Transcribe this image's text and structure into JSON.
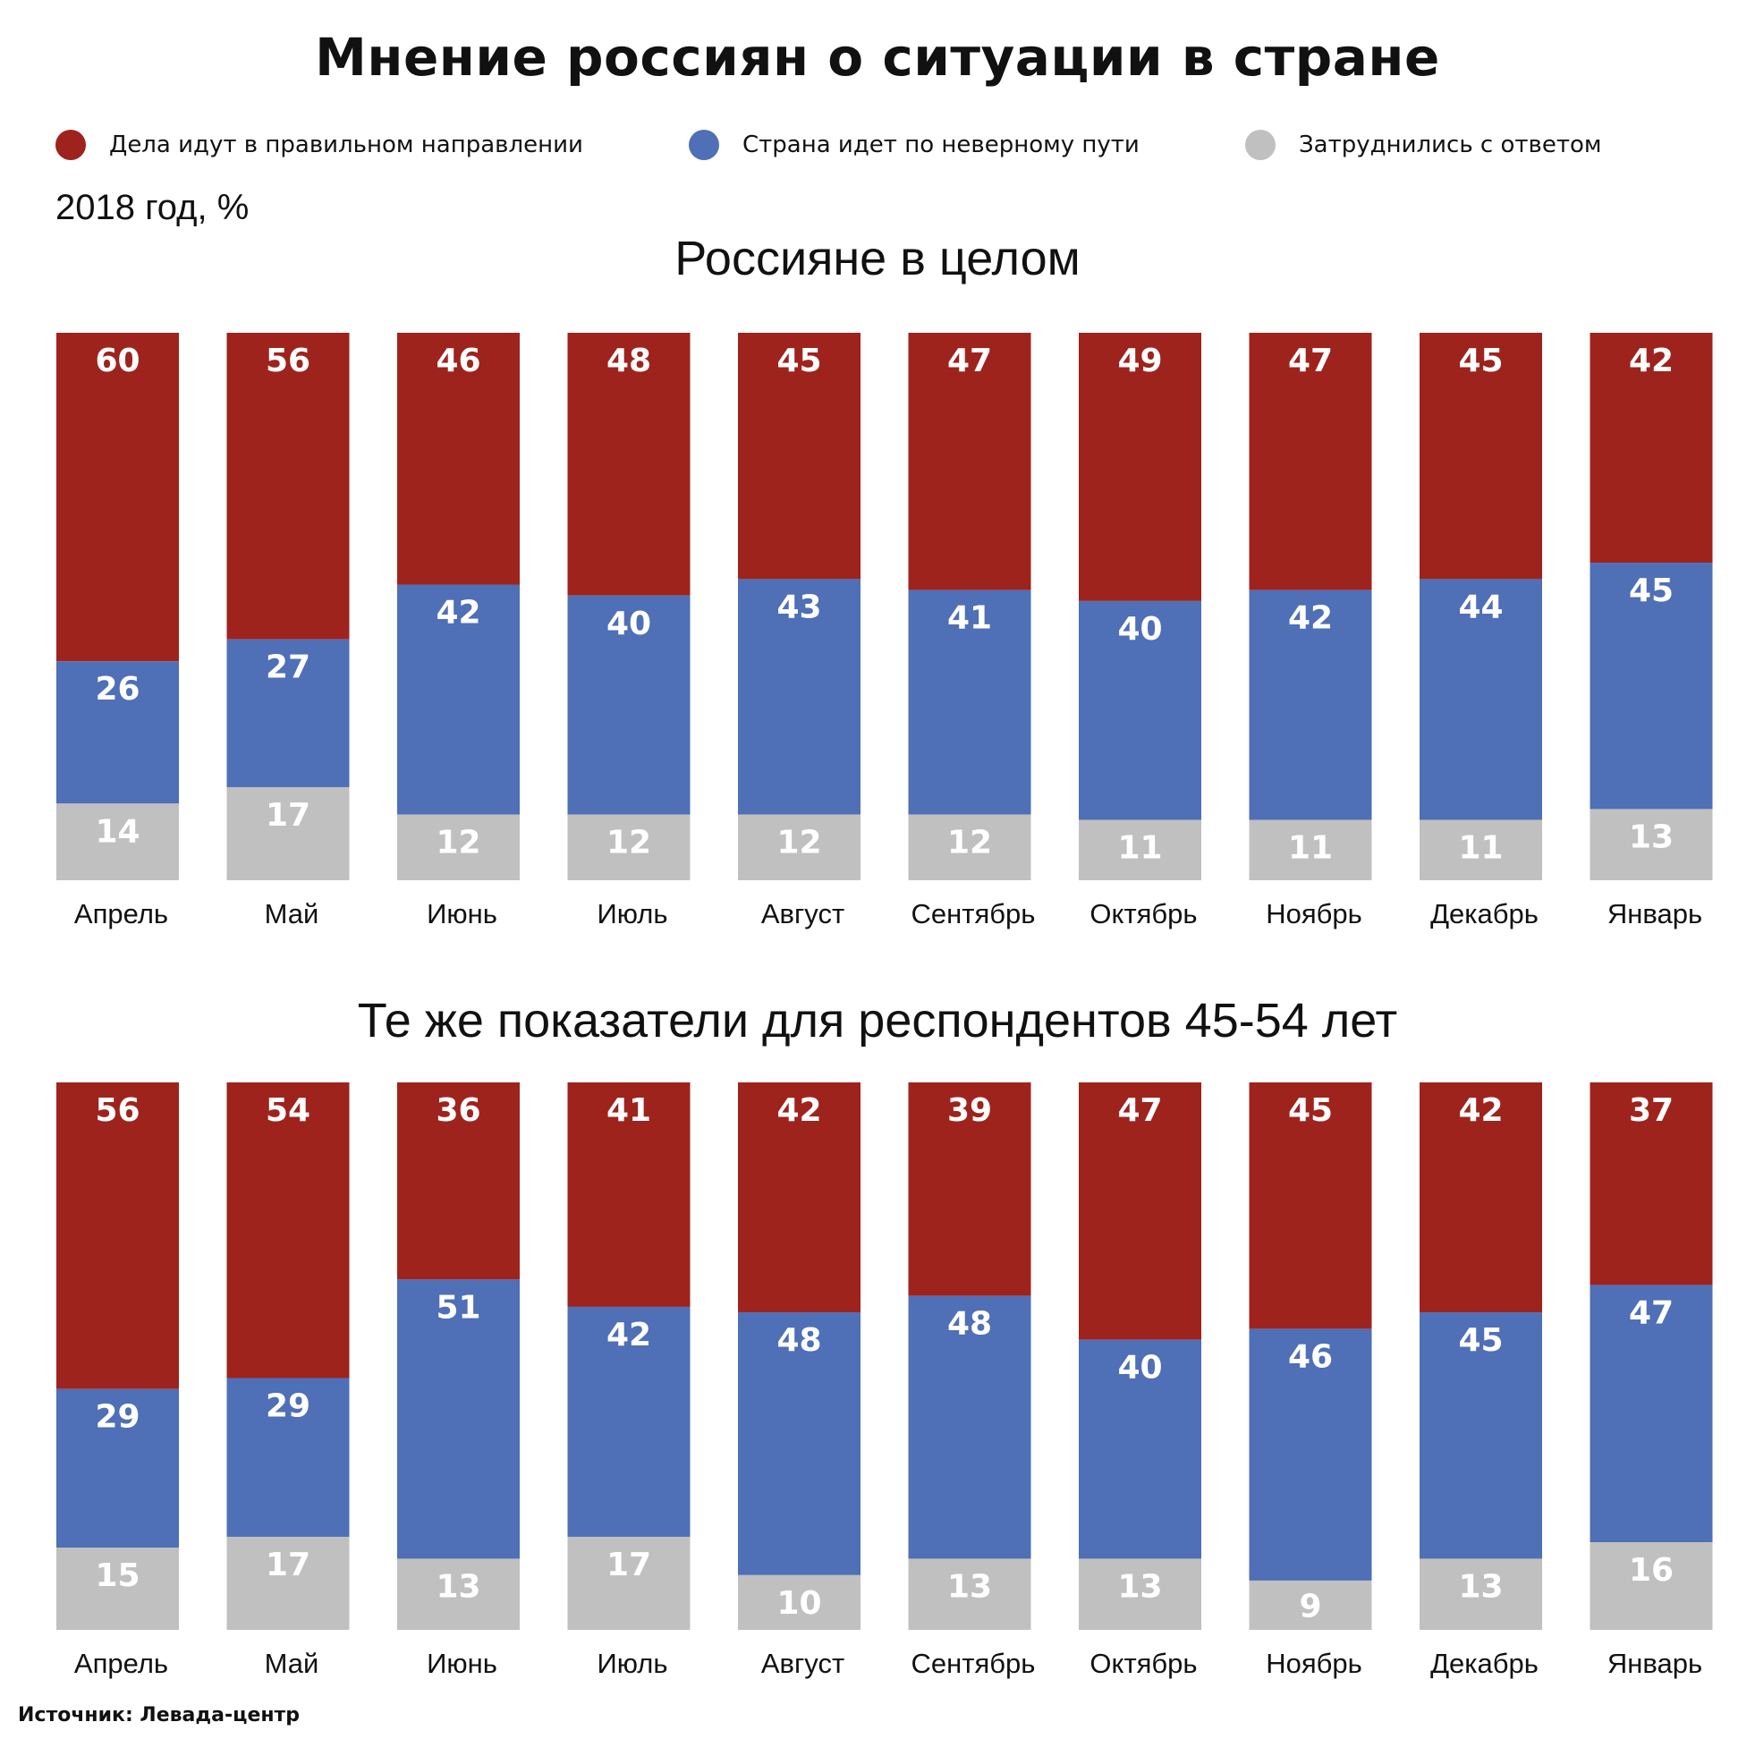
{
  "title": "Мнение россиян о ситуации в стране",
  "subtitle": "2018 год, %",
  "source": "Источник: Левада-центр",
  "colors": {
    "right": "#9e231d",
    "wrong": "#4f6fb6",
    "undecided": "#c0c0c0"
  },
  "legend": [
    {
      "key": "right",
      "label": "Дела идут в правильном направлении"
    },
    {
      "key": "wrong",
      "label": "Страна идет по неверному пути"
    },
    {
      "key": "undecided",
      "label": "Затруднились с ответом"
    }
  ],
  "chart_data": [
    {
      "type": "bar",
      "stacked": true,
      "title": "Россияне в целом",
      "categories": [
        "Апрель",
        "Май",
        "Июнь",
        "Июль",
        "Август",
        "Сентябрь",
        "Октябрь",
        "Ноябрь",
        "Декабрь",
        "Январь"
      ],
      "series": [
        {
          "name": "Дела идут в правильном направлении",
          "values": [
            60,
            56,
            46,
            48,
            45,
            47,
            49,
            47,
            45,
            42
          ]
        },
        {
          "name": "Страна идет по неверному пути",
          "values": [
            26,
            27,
            42,
            40,
            43,
            41,
            40,
            42,
            44,
            45
          ]
        },
        {
          "name": "Затруднились с ответом",
          "values": [
            14,
            17,
            12,
            12,
            12,
            12,
            11,
            11,
            11,
            13
          ]
        }
      ],
      "ylim": [
        0,
        100
      ],
      "grid": false
    },
    {
      "type": "bar",
      "stacked": true,
      "title": "Те же показатели для респондентов 45-54 лет",
      "categories": [
        "Апрель",
        "Май",
        "Июнь",
        "Июль",
        "Август",
        "Сентябрь",
        "Октябрь",
        "Ноябрь",
        "Декабрь",
        "Январь"
      ],
      "series": [
        {
          "name": "Дела идут в правильном направлении",
          "values": [
            56,
            54,
            36,
            41,
            42,
            39,
            47,
            45,
            42,
            37
          ]
        },
        {
          "name": "Страна идет по неверному пути",
          "values": [
            29,
            29,
            51,
            42,
            48,
            48,
            40,
            46,
            45,
            47
          ]
        },
        {
          "name": "Затруднились с ответом",
          "values": [
            15,
            17,
            13,
            17,
            10,
            13,
            13,
            9,
            13,
            16
          ]
        }
      ],
      "ylim": [
        0,
        100
      ],
      "grid": false
    }
  ]
}
